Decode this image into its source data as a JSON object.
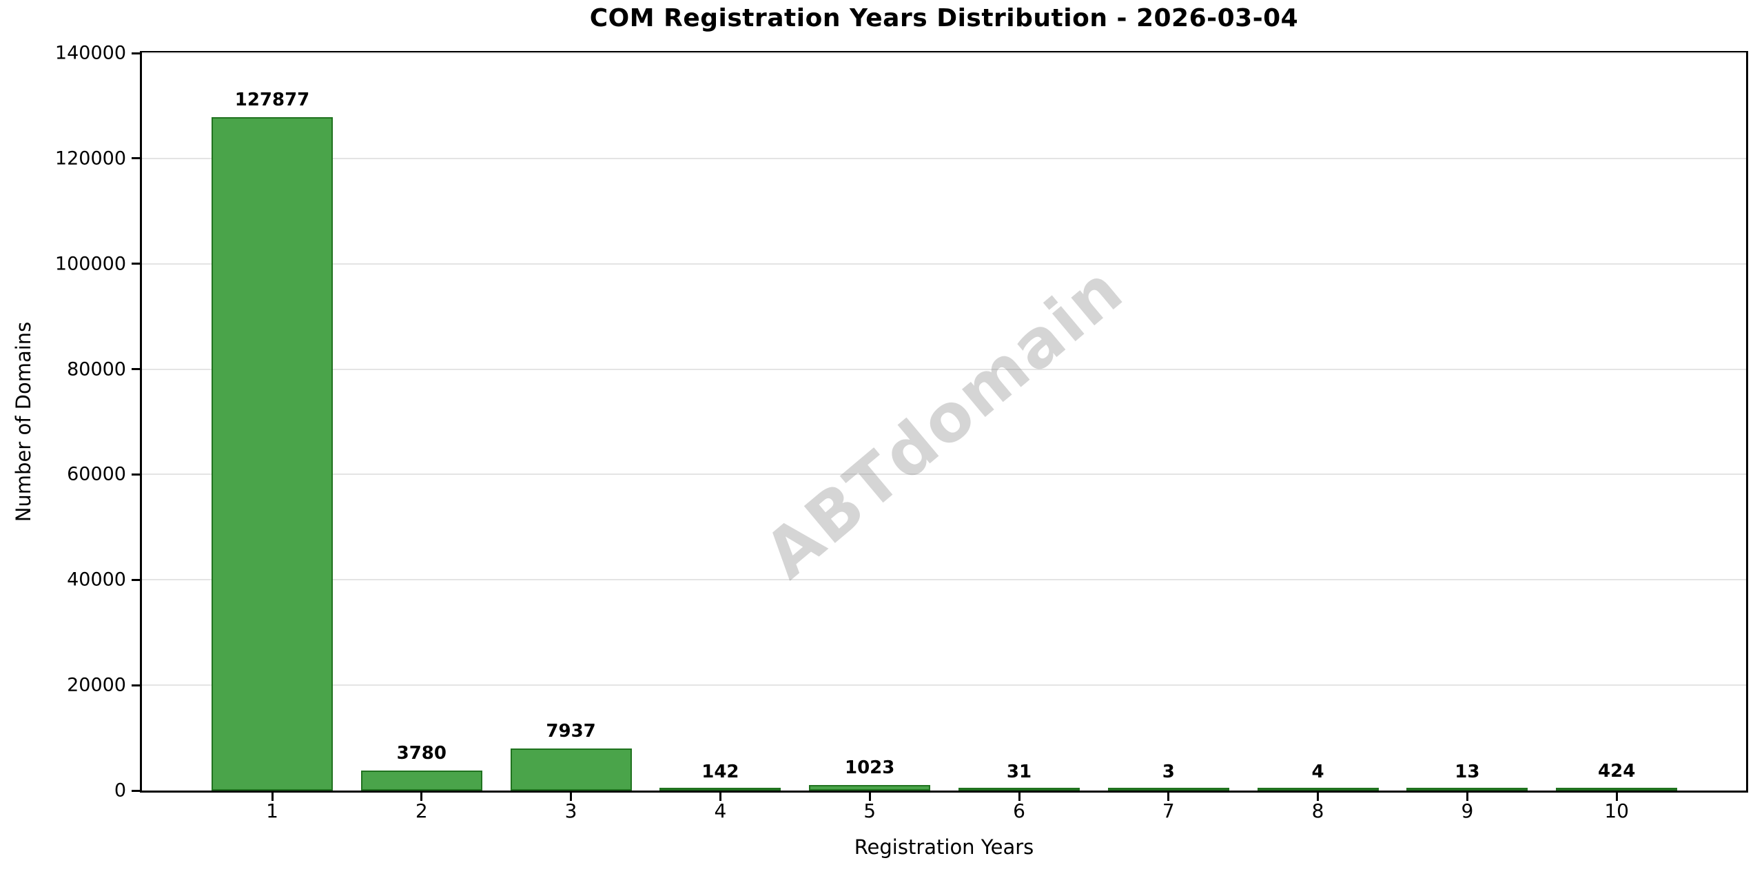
{
  "chart_data": {
    "type": "bar",
    "title": "COM Registration Years Distribution - 2026-03-04",
    "xlabel": "Registration Years",
    "ylabel": "Number of Domains",
    "categories": [
      "1",
      "2",
      "3",
      "4",
      "5",
      "6",
      "7",
      "8",
      "9",
      "10"
    ],
    "values": [
      127877,
      3780,
      7937,
      142,
      1023,
      31,
      3,
      4,
      13,
      424
    ],
    "ylim": [
      0,
      140000
    ],
    "yticks": [
      0,
      20000,
      40000,
      60000,
      80000,
      100000,
      120000,
      140000
    ],
    "grid": "horizontal",
    "legend": null,
    "bar_value_labels_shown": true,
    "watermark": "ABTdomain",
    "colors": {
      "bar_fill": "#4aa44a",
      "bar_edge": "#20721f",
      "grid": "#e4e4e4",
      "watermark_gray": "#7d7d7d",
      "text": "#000000",
      "background": "#ffffff"
    }
  }
}
